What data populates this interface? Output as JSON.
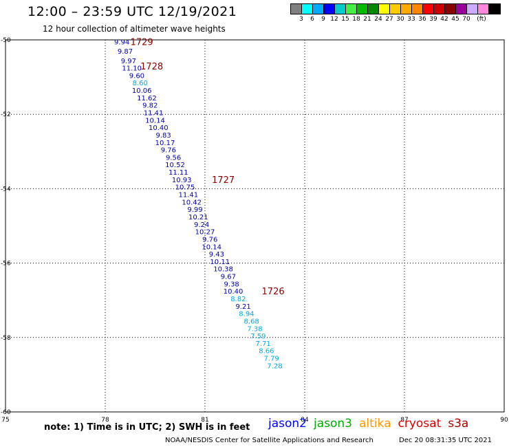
{
  "header": {
    "title": "12:00 – 23:59 UTC 12/19/2021",
    "subtitle": "12 hour collection of altimeter wave heights"
  },
  "legend": {
    "colors": [
      "#808080",
      "#00ffff",
      "#00aaff",
      "#0000ff",
      "#00cccc",
      "#44ee44",
      "#00bb00",
      "#008800",
      "#ffff00",
      "#ffcc00",
      "#ffaa00",
      "#ff8800",
      "#ff0000",
      "#cc0000",
      "#880000",
      "#990099",
      "#ccaaff",
      "#ff88dd",
      "#000000"
    ],
    "tick_labels": [
      "3",
      "6",
      "9",
      "12",
      "15",
      "18",
      "21",
      "24",
      "27",
      "30",
      "33",
      "36",
      "39",
      "42",
      "45",
      "70",
      "(ft)"
    ],
    "tick_positions": [
      1,
      2,
      3,
      4,
      5,
      6,
      7,
      8,
      9,
      10,
      11,
      12,
      13,
      14,
      15,
      16,
      17
    ]
  },
  "footer": {
    "note": "note:  1) Time is in UTC;  2) SWH is in feet",
    "satellites": [
      {
        "name": "jason2",
        "color": "#0000ff"
      },
      {
        "name": "jason3",
        "color": "#00aa00"
      },
      {
        "name": "altika",
        "color": "#ff9900"
      },
      {
        "name": "cryosat",
        "color": "#dd0000"
      },
      {
        "name": "s3a",
        "color": "#aa0000"
      }
    ],
    "credit": "NOAA/NESDIS Center for Satellite Applications and Research",
    "timestamp": "Dec 20 08:31:35 UTC 2021"
  },
  "chart_data": {
    "type": "scatter",
    "x_ticks": [
      75,
      78,
      81,
      84,
      87,
      90
    ],
    "y_ticks": [
      -50,
      -52,
      -54,
      -56,
      -58,
      -60
    ],
    "xlim": [
      75,
      90
    ],
    "ylim": [
      -60,
      -50
    ],
    "grid": true,
    "colors": {
      "dark_blue": "#0000aa",
      "light_blue": "#00aadd",
      "time_label": "#880000"
    },
    "points": [
      {
        "x": 78.5,
        "y": -50.05,
        "label": "9.94",
        "c": "dark_blue"
      },
      {
        "x": 78.6,
        "y": -50.3,
        "label": "9.87",
        "c": "dark_blue"
      },
      {
        "x": 78.7,
        "y": -50.55,
        "label": "9.97",
        "c": "dark_blue"
      },
      {
        "x": 78.8,
        "y": -50.75,
        "label": "11.10",
        "c": "dark_blue"
      },
      {
        "x": 78.95,
        "y": -50.95,
        "label": "9.60",
        "c": "dark_blue"
      },
      {
        "x": 79.05,
        "y": -51.15,
        "label": "8.60",
        "c": "light_blue"
      },
      {
        "x": 79.1,
        "y": -51.35,
        "label": "10.06",
        "c": "dark_blue"
      },
      {
        "x": 79.25,
        "y": -51.55,
        "label": "11.62",
        "c": "dark_blue"
      },
      {
        "x": 79.35,
        "y": -51.75,
        "label": "9.82",
        "c": "dark_blue"
      },
      {
        "x": 79.45,
        "y": -51.95,
        "label": "11.41",
        "c": "dark_blue"
      },
      {
        "x": 79.5,
        "y": -52.15,
        "label": "10.14",
        "c": "dark_blue"
      },
      {
        "x": 79.6,
        "y": -52.35,
        "label": "10.40",
        "c": "dark_blue"
      },
      {
        "x": 79.75,
        "y": -52.55,
        "label": "9.83",
        "c": "dark_blue"
      },
      {
        "x": 79.8,
        "y": -52.75,
        "label": "10.17",
        "c": "dark_blue"
      },
      {
        "x": 79.9,
        "y": -52.95,
        "label": "9.76",
        "c": "dark_blue"
      },
      {
        "x": 80.05,
        "y": -53.15,
        "label": "9.56",
        "c": "dark_blue"
      },
      {
        "x": 80.1,
        "y": -53.35,
        "label": "10.52",
        "c": "dark_blue"
      },
      {
        "x": 80.2,
        "y": -53.55,
        "label": "11.11",
        "c": "dark_blue"
      },
      {
        "x": 80.3,
        "y": -53.75,
        "label": "10.93",
        "c": "dark_blue"
      },
      {
        "x": 80.4,
        "y": -53.95,
        "label": "10.75",
        "c": "dark_blue"
      },
      {
        "x": 80.5,
        "y": -54.15,
        "label": "11.41",
        "c": "dark_blue"
      },
      {
        "x": 80.6,
        "y": -54.35,
        "label": "10.42",
        "c": "dark_blue"
      },
      {
        "x": 80.7,
        "y": -54.55,
        "label": "9.99",
        "c": "dark_blue"
      },
      {
        "x": 80.8,
        "y": -54.75,
        "label": "10.21",
        "c": "dark_blue"
      },
      {
        "x": 80.9,
        "y": -54.95,
        "label": "9.24",
        "c": "dark_blue"
      },
      {
        "x": 81.0,
        "y": -55.15,
        "label": "10.27",
        "c": "dark_blue"
      },
      {
        "x": 81.15,
        "y": -55.35,
        "label": "9.76",
        "c": "dark_blue"
      },
      {
        "x": 81.2,
        "y": -55.55,
        "label": "10.14",
        "c": "dark_blue"
      },
      {
        "x": 81.35,
        "y": -55.75,
        "label": "9.43",
        "c": "dark_blue"
      },
      {
        "x": 81.45,
        "y": -55.95,
        "label": "10.11",
        "c": "dark_blue"
      },
      {
        "x": 81.55,
        "y": -56.15,
        "label": "10.38",
        "c": "dark_blue"
      },
      {
        "x": 81.7,
        "y": -56.35,
        "label": "9.67",
        "c": "dark_blue"
      },
      {
        "x": 81.8,
        "y": -56.55,
        "label": "9.38",
        "c": "dark_blue"
      },
      {
        "x": 81.85,
        "y": -56.75,
        "label": "10.40",
        "c": "dark_blue"
      },
      {
        "x": 82.0,
        "y": -56.95,
        "label": "8.82",
        "c": "light_blue"
      },
      {
        "x": 82.15,
        "y": -57.15,
        "label": "9.21",
        "c": "dark_blue"
      },
      {
        "x": 82.25,
        "y": -57.35,
        "label": "8.94",
        "c": "light_blue"
      },
      {
        "x": 82.4,
        "y": -57.55,
        "label": "8.68",
        "c": "light_blue"
      },
      {
        "x": 82.5,
        "y": -57.75,
        "label": "7.38",
        "c": "light_blue"
      },
      {
        "x": 82.6,
        "y": -57.95,
        "label": "7.59",
        "c": "light_blue"
      },
      {
        "x": 82.75,
        "y": -58.15,
        "label": "7.71",
        "c": "light_blue"
      },
      {
        "x": 82.85,
        "y": -58.35,
        "label": "8.66",
        "c": "light_blue"
      },
      {
        "x": 83.0,
        "y": -58.55,
        "label": "7.79",
        "c": "light_blue"
      },
      {
        "x": 83.1,
        "y": -58.75,
        "label": "7.28",
        "c": "light_blue"
      }
    ],
    "time_labels": [
      {
        "x": 79.1,
        "y": -50.05,
        "label": "1729"
      },
      {
        "x": 79.4,
        "y": -50.7,
        "label": "1728"
      },
      {
        "x": 81.55,
        "y": -53.75,
        "label": "1727"
      },
      {
        "x": 83.05,
        "y": -56.75,
        "label": "1726"
      }
    ]
  }
}
